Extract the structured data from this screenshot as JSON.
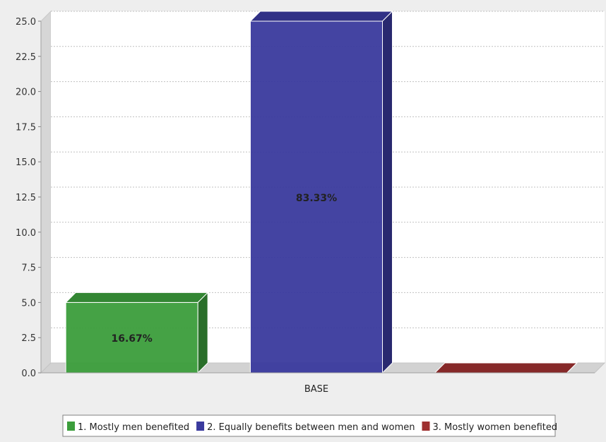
{
  "chart_data": {
    "type": "bar",
    "title": "",
    "xlabel": "",
    "ylabel": "",
    "categories": [
      "BASE"
    ],
    "series": [
      {
        "name": "1. Mostly men benefited",
        "values": [
          5
        ],
        "color": "#3c9e3c",
        "label": "16.67%"
      },
      {
        "name": "2. Equally benefits between men and women",
        "values": [
          25
        ],
        "color": "#3a3a9e",
        "label": "83.33%"
      },
      {
        "name": "3. Mostly women benefited",
        "values": [
          0
        ],
        "color": "#9e3030",
        "label": ""
      }
    ],
    "ylim": [
      0,
      25
    ],
    "yticks": [
      "0.0",
      "2.5",
      "5.0",
      "7.5",
      "10.0",
      "12.5",
      "15.0",
      "17.5",
      "20.0",
      "22.5",
      "25.0"
    ],
    "grid": true,
    "legend_position": "bottom",
    "style": "3d"
  }
}
